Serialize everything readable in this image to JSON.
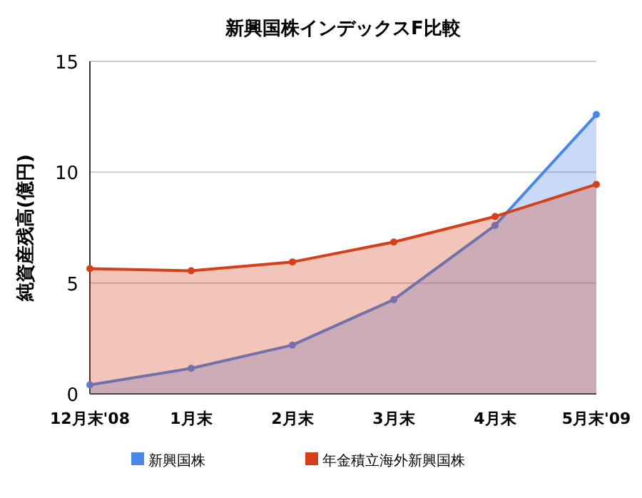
{
  "chart_data": {
    "type": "area",
    "title": "新興国株インデックスF比較",
    "ylabel": "純資産残高(億円)",
    "categories": [
      "12月末'08",
      "1月末",
      "2月末",
      "3月末",
      "4月末",
      "5月末'09"
    ],
    "series": [
      {
        "name": "新興国株",
        "color": "#4a86e8",
        "values": [
          0.4,
          1.15,
          2.2,
          4.25,
          7.6,
          12.6
        ]
      },
      {
        "name": "年金積立海外新興国株",
        "color": "#d5401a",
        "values": [
          5.65,
          5.55,
          5.95,
          6.85,
          8.0,
          9.45
        ]
      }
    ],
    "ylim": [
      0,
      15
    ],
    "yticks": [
      0,
      5,
      10,
      15
    ],
    "grid": "y",
    "legend": "bottom",
    "marker": "circle"
  }
}
